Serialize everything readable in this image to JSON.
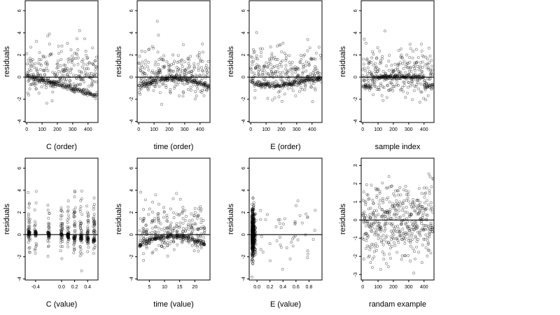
{
  "chart_data": [
    {
      "type": "scatter",
      "xlabel": "C (order)",
      "ylabel": "residuals",
      "xlim": [
        -10,
        465
      ],
      "ylim": [
        -4.1,
        6.9
      ],
      "xticks": [
        0,
        100,
        200,
        300,
        400
      ],
      "yticks": [
        -4,
        -2,
        0,
        2,
        4,
        6
      ],
      "xtick_labels": [
        "0",
        "100",
        "200",
        "300",
        "400"
      ],
      "ytick_labels": [
        "-4",
        "-2",
        "0",
        "2",
        "4",
        "6"
      ],
      "hline": 0,
      "grid": false,
      "pattern": "order_trend",
      "n_points": 460
    },
    {
      "type": "scatter",
      "xlabel": "time (order)",
      "ylabel": "residuals",
      "xlim": [
        -10,
        465
      ],
      "ylim": [
        -4.1,
        6.9
      ],
      "xticks": [
        0,
        100,
        200,
        300,
        400
      ],
      "yticks": [
        -4,
        -2,
        0,
        2,
        4,
        6
      ],
      "xtick_labels": [
        "0",
        "100",
        "200",
        "300",
        "400"
      ],
      "ytick_labels": [
        "-4",
        "-2",
        "0",
        "2",
        "4",
        "6"
      ],
      "hline": 0,
      "grid": false,
      "pattern": "order_arc",
      "n_points": 460
    },
    {
      "type": "scatter",
      "xlabel": "E (order)",
      "ylabel": "residuals",
      "xlim": [
        -10,
        465
      ],
      "ylim": [
        -4.1,
        6.9
      ],
      "xticks": [
        0,
        100,
        200,
        300,
        400
      ],
      "yticks": [
        -4,
        -2,
        0,
        2,
        4,
        6
      ],
      "xtick_labels": [
        "0",
        "100",
        "200",
        "300",
        "400"
      ],
      "ytick_labels": [
        "-4",
        "-2",
        "0",
        "2",
        "4",
        "6"
      ],
      "hline": 0,
      "grid": false,
      "pattern": "order_dip",
      "n_points": 460
    },
    {
      "type": "scatter",
      "xlabel": "sample index",
      "ylabel": "residuals",
      "xlim": [
        -10,
        465
      ],
      "ylim": [
        -4.1,
        6.9
      ],
      "xticks": [
        0,
        100,
        200,
        300,
        400
      ],
      "yticks": [
        -4,
        -2,
        0,
        2,
        4,
        6
      ],
      "xtick_labels": [
        "0",
        "100",
        "200",
        "300",
        "400"
      ],
      "ytick_labels": [
        "-4",
        "-2",
        "0",
        "2",
        "4",
        "6"
      ],
      "hline": 0,
      "grid": false,
      "pattern": "order_flat",
      "n_points": 460
    },
    {
      "type": "scatter",
      "xlabel": "C (value)",
      "ylabel": "residuals",
      "xlim": [
        -0.56,
        0.56
      ],
      "ylim": [
        -4.1,
        6.9
      ],
      "xticks": [
        -0.4,
        0.0,
        0.2,
        0.4
      ],
      "yticks": [
        -4,
        -2,
        0,
        2,
        4,
        6
      ],
      "xtick_labels": [
        "-0.4",
        "0.0",
        "0.2",
        "0.4"
      ],
      "ytick_labels": [
        "-4",
        "-2",
        "0",
        "2",
        "4",
        "6"
      ],
      "hline": 0,
      "grid": false,
      "pattern": "value_columns_c",
      "n_points": 460
    },
    {
      "type": "scatter",
      "xlabel": "time (value)",
      "ylabel": "residuals",
      "xlim": [
        1,
        25
      ],
      "ylim": [
        -4.1,
        6.9
      ],
      "xticks": [
        5,
        10,
        15,
        20
      ],
      "yticks": [
        -4,
        -2,
        0,
        2,
        4,
        6
      ],
      "xtick_labels": [
        "5",
        "10",
        "15",
        "20"
      ],
      "ytick_labels": [
        "-4",
        "-2",
        "0",
        "2",
        "4",
        "6"
      ],
      "hline": 0,
      "grid": false,
      "pattern": "value_columns_time",
      "n_points": 460
    },
    {
      "type": "scatter",
      "xlabel": "E (value)",
      "ylabel": "residuals",
      "xlim": [
        -0.12,
        1.0
      ],
      "ylim": [
        -4.1,
        6.9
      ],
      "xticks": [
        0.0,
        0.2,
        0.4,
        0.6,
        0.8
      ],
      "yticks": [
        -4,
        -2,
        0,
        2,
        4,
        6
      ],
      "xtick_labels": [
        "0.0",
        "0.2",
        "0.4",
        "0.6",
        "0.8"
      ],
      "ytick_labels": [
        "-4",
        "-2",
        "0",
        "2",
        "4",
        "6"
      ],
      "hline": 0,
      "grid": false,
      "pattern": "value_skewed_e",
      "n_points": 460
    },
    {
      "type": "scatter",
      "xlabel": "randam example",
      "ylabel": "residuals",
      "xlim": [
        -10,
        465
      ],
      "ylim": [
        -3.3,
        3.4
      ],
      "xticks": [
        0,
        100,
        200,
        300,
        400
      ],
      "yticks": [
        -3,
        -2,
        -1,
        0,
        1,
        2,
        3
      ],
      "xtick_labels": [
        "0",
        "100",
        "200",
        "300",
        "400"
      ],
      "ytick_labels": [
        "-3",
        "-2",
        "-1",
        "0",
        "1",
        "2",
        "3"
      ],
      "hline": 0,
      "grid": false,
      "pattern": "random_normal",
      "n_points": 460
    }
  ]
}
